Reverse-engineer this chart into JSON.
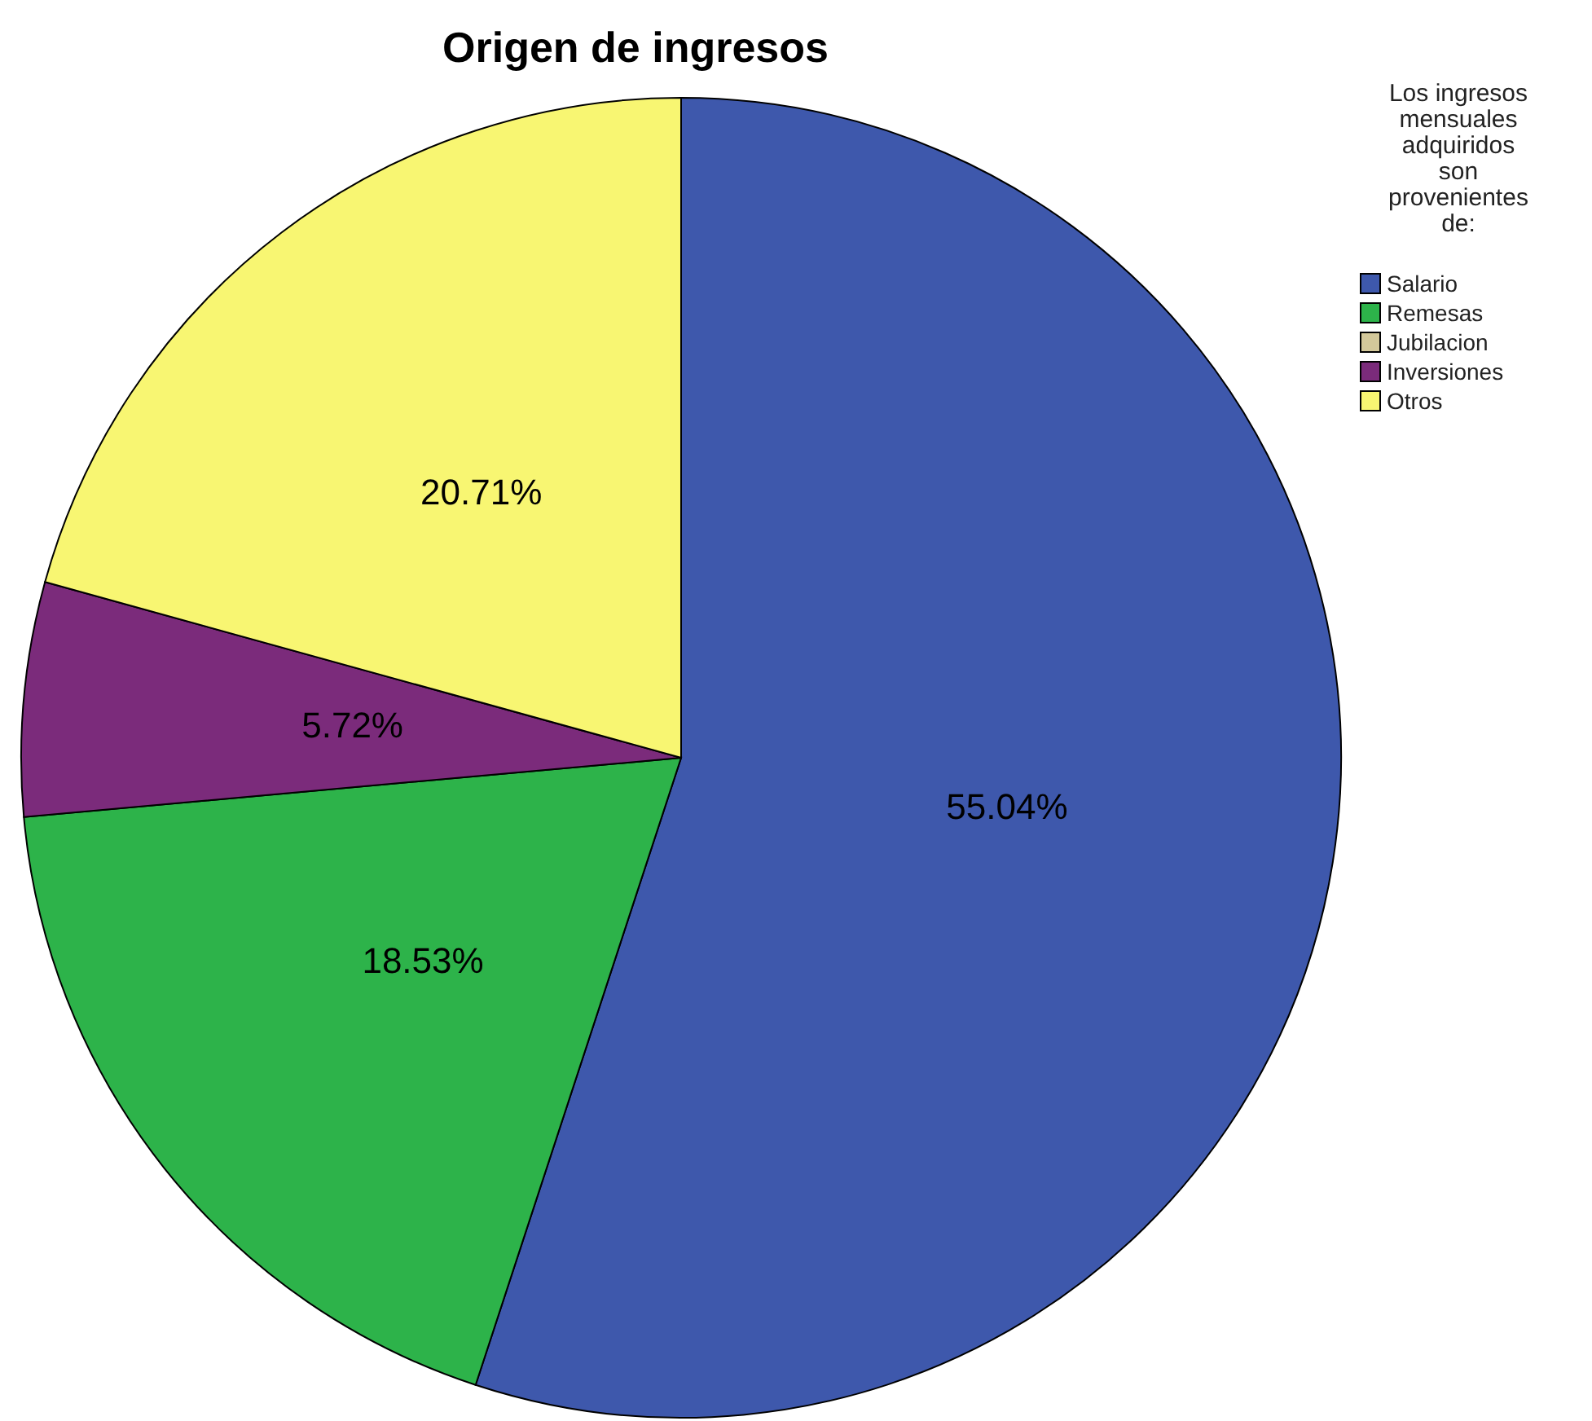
{
  "chart_data": {
    "type": "pie",
    "title": "Origen de ingresos",
    "legend_title": "Los ingresos mensuales adquiridos son provenientes de:",
    "legend": "top right",
    "categories": [
      "Salario",
      "Remesas",
      "Jubilacion",
      "Inversiones",
      "Otros"
    ],
    "values": [
      55.04,
      18.53,
      0,
      5.72,
      20.71
    ],
    "colors": [
      "#3e58ac",
      "#2db34a",
      "#d3c89a",
      "#7b2b7b",
      "#f8f672"
    ],
    "value_labels": [
      "55.04%",
      "18.53%",
      null,
      "5.72%",
      "20.71%"
    ]
  }
}
